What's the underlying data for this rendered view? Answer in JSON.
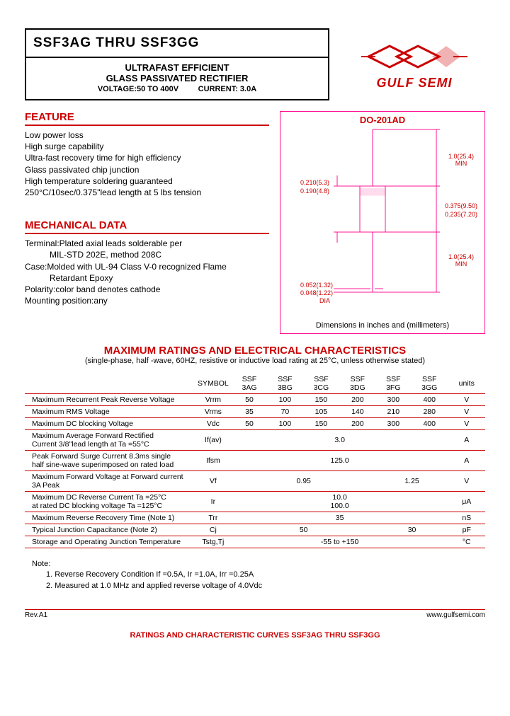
{
  "header": {
    "title": "SSF3AG  THRU  SSF3GG",
    "sub1": "ULTRAFAST EFFICIENT",
    "sub2": "GLASS PASSIVATED RECTIFIER",
    "voltage_label": "VOLTAGE:50  TO  400V",
    "current_label": "CURRENT: 3.0A",
    "logo_text": "GULF SEMI"
  },
  "feature": {
    "heading": "FEATURE",
    "lines": [
      "Low power loss",
      "High surge capability",
      "Ultra-fast recovery time for high efficiency",
      "Glass passivated chip junction",
      "High temperature soldering guaranteed",
      "250°C/10sec/0.375\"lead length at 5 lbs tension"
    ]
  },
  "mechanical": {
    "heading": "MECHANICAL DATA",
    "l1": "Terminal:Plated axial leads solderable per",
    "l1b": "MIL-STD 202E, method 208C",
    "l2": "Case:Molded with UL-94 Class V-0 recognized Flame",
    "l2b": "Retardant Epoxy",
    "l3": "Polarity:color band denotes cathode",
    "l4": "Mounting position:any"
  },
  "diagram": {
    "title": "DO-201AD",
    "caption": "Dimensions in inches and (millimeters)",
    "dims": {
      "lead_min_top": "1.0(25.4)\nMIN",
      "body_w1": "0.210(5.3)",
      "body_w2": "0.190(4.8)",
      "body_h1": "0.375(9.50)",
      "body_h2": "0.235(7.20)",
      "lead_min_bot": "1.0(25.4)\nMIN",
      "dia1": "0.052(1.32)",
      "dia2": "0.048(1.22)",
      "dia_label": "DIA"
    },
    "colors": {
      "outline": "#ff1493",
      "text": "#c00000"
    }
  },
  "ratings": {
    "heading": "MAXIMUM  RATINGS  AND  ELECTRICAL  CHARACTERISTICS",
    "sub": "(single-phase, half -wave, 60HZ, resistive or inductive load rating at 25°C, unless otherwise stated)",
    "symbol_hdr": "SYMBOL",
    "cols": [
      "SSF\n3AG",
      "SSF\n3BG",
      "SSF\n3CG",
      "SSF\n3DG",
      "SSF\n3FG",
      "SSF\n3GG"
    ],
    "units_hdr": "units",
    "rows": [
      {
        "param": "Maximum Recurrent Peak Reverse Voltage",
        "sym": "Vrrm",
        "vals": [
          "50",
          "100",
          "150",
          "200",
          "300",
          "400"
        ],
        "unit": "V"
      },
      {
        "param": "Maximum RMS Voltage",
        "sym": "Vrms",
        "vals": [
          "35",
          "70",
          "105",
          "140",
          "210",
          "280"
        ],
        "unit": "V"
      },
      {
        "param": "Maximum DC blocking Voltage",
        "sym": "Vdc",
        "vals": [
          "50",
          "100",
          "150",
          "200",
          "300",
          "400"
        ],
        "unit": "V"
      },
      {
        "param": "Maximum Average Forward Rectified\nCurrent 3/8\"lead length at Ta =55°C",
        "sym": "If(av)",
        "span": "3.0",
        "unit": "A"
      },
      {
        "param": "Peak Forward Surge Current 8.3ms single\nhalf sine-wave superimposed on rated load",
        "sym": "Ifsm",
        "span": "125.0",
        "unit": "A"
      },
      {
        "param": "Maximum Forward Voltage at Forward current\n3A Peak",
        "sym": "Vf",
        "span4": "0.95",
        "span2": "1.25",
        "unit": "V"
      },
      {
        "param": "Maximum DC Reverse Current      Ta =25°C\nat rated DC blocking voltage        Ta =125°C",
        "sym": "Ir",
        "stack": [
          "10.0",
          "100.0"
        ],
        "unit": "μA"
      },
      {
        "param": "Maximum Reverse Recovery Time    (Note 1)",
        "sym": "Trr",
        "span": "35",
        "unit": "nS"
      },
      {
        "param": "Typical Junction Capacitance          (Note 2)",
        "sym": "Cj",
        "span4": "50",
        "span2": "30",
        "unit": "pF"
      },
      {
        "param": "Storage and Operating Junction Temperature",
        "sym": "Tstg,Tj",
        "span": "-55 to +150",
        "unit": "°C"
      }
    ]
  },
  "notes": {
    "heading": "Note:",
    "l1": "1. Reverse Recovery Condition If =0.5A, Ir =1.0A, Irr =0.25A",
    "l2": "2. Measured at 1.0 MHz and applied reverse voltage of 4.0Vdc"
  },
  "footer": {
    "rev": "Rev.A1",
    "url": "www.gulfsemi.com",
    "bottom": "RATINGS AND CHARACTERISTIC CURVES SSF3AG THRU SSF3GG"
  }
}
